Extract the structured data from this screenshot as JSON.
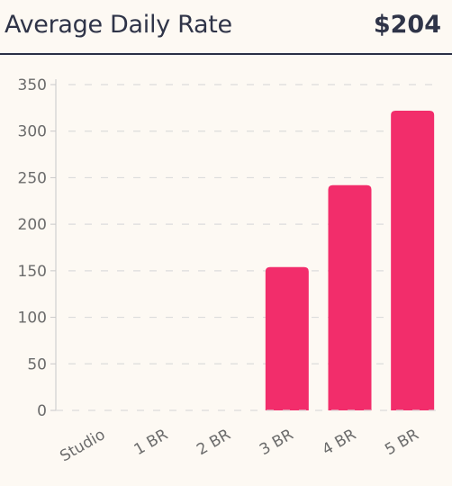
{
  "header": {
    "title": "Average Daily Rate",
    "total": "$204"
  },
  "chart_data": {
    "type": "bar",
    "categories": [
      "Studio",
      "1 BR",
      "2 BR",
      "3 BR",
      "4 BR",
      "5 BR"
    ],
    "values": [
      0,
      0,
      0,
      154,
      242,
      322
    ],
    "ylim": [
      0,
      350
    ],
    "yticks": [
      0,
      50,
      100,
      150,
      200,
      250,
      300,
      350
    ],
    "grid": true,
    "bar_color": "#f22d6b",
    "grid_color": "#dcdcdc",
    "axis_color": "#c8c8c8",
    "tick_color": "#6b6b6b"
  }
}
